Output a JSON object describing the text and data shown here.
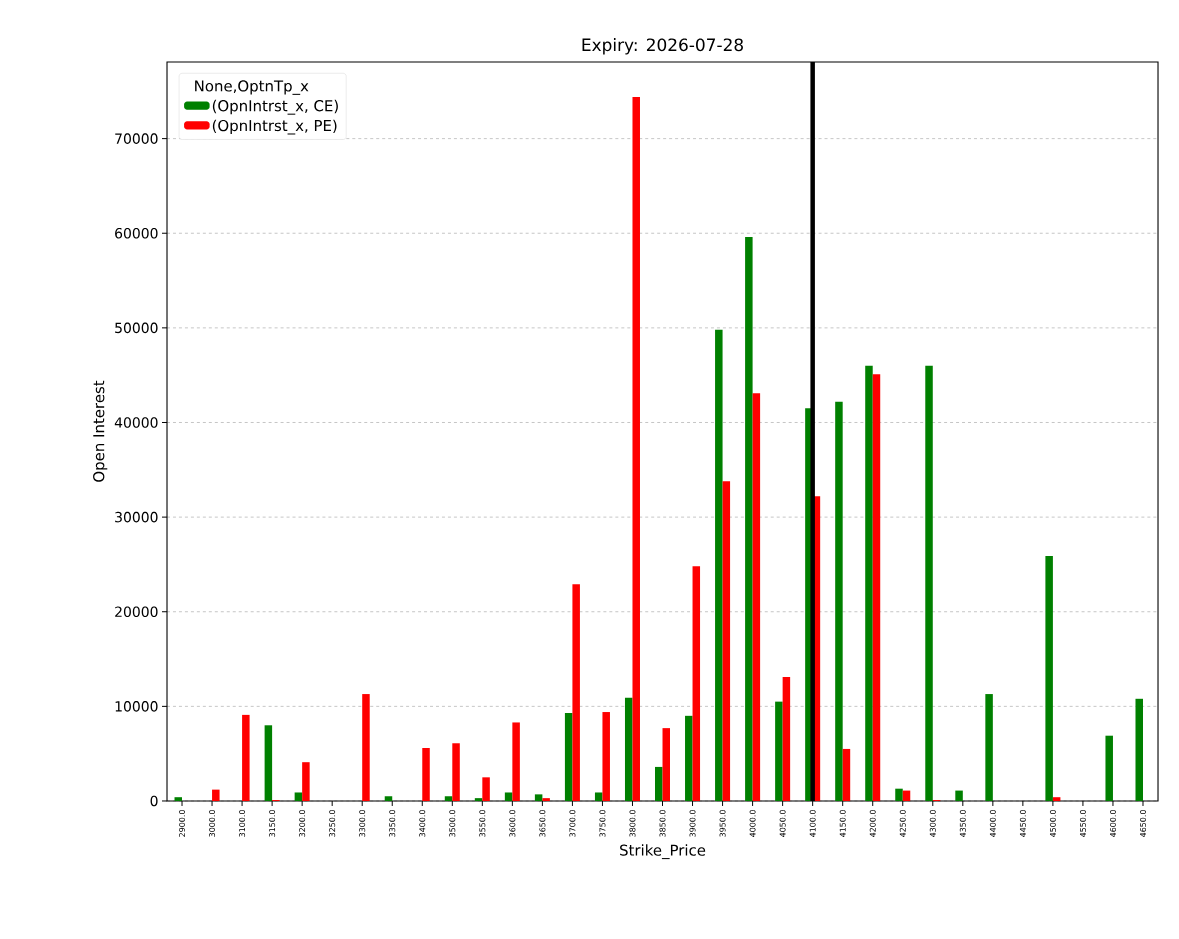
{
  "chart_data": {
    "type": "bar",
    "title": "Expiry: 2026-07-28",
    "xlabel": "Strike_Price",
    "ylabel": "Open Interest",
    "legend_title": "None,OptnTp_x",
    "categories": [
      "2900.0",
      "3000.0",
      "3100.0",
      "3150.0",
      "3200.0",
      "3250.0",
      "3300.0",
      "3350.0",
      "3400.0",
      "3500.0",
      "3550.0",
      "3600.0",
      "3650.0",
      "3700.0",
      "3750.0",
      "3800.0",
      "3850.0",
      "3900.0",
      "3950.0",
      "4000.0",
      "4050.0",
      "4100.0",
      "4150.0",
      "4200.0",
      "4250.0",
      "4300.0",
      "4350.0",
      "4400.0",
      "4450.0",
      "4500.0",
      "4550.0",
      "4600.0",
      "4650.0"
    ],
    "series": [
      {
        "name": "(OpnIntrst_x, CE)",
        "color": "#008000",
        "values": [
          400,
          0,
          0,
          8000,
          900,
          0,
          0,
          500,
          0,
          500,
          300,
          900,
          700,
          9300,
          900,
          10900,
          3600,
          9000,
          49800,
          59600,
          10500,
          41500,
          42200,
          46000,
          1300,
          46000,
          1100,
          11300,
          0,
          25900,
          0,
          6900,
          10800
        ]
      },
      {
        "name": "(OpnIntrst_x, PE)",
        "color": "#ff0000",
        "values": [
          0,
          1200,
          9100,
          100,
          4100,
          0,
          11300,
          0,
          5600,
          6100,
          2500,
          8300,
          300,
          22900,
          9400,
          74400,
          7700,
          24800,
          33800,
          43100,
          13100,
          32200,
          5500,
          45100,
          1100,
          100,
          0,
          0,
          0,
          400,
          0,
          0,
          0
        ]
      }
    ],
    "ylim": [
      0,
      78100
    ],
    "yticks": [
      0,
      10000,
      20000,
      30000,
      40000,
      50000,
      60000,
      70000
    ],
    "grid": "y",
    "legend": "top left",
    "ref_lines": [
      {
        "axis": "x",
        "value": "4100.0",
        "color": "#000000"
      }
    ]
  }
}
